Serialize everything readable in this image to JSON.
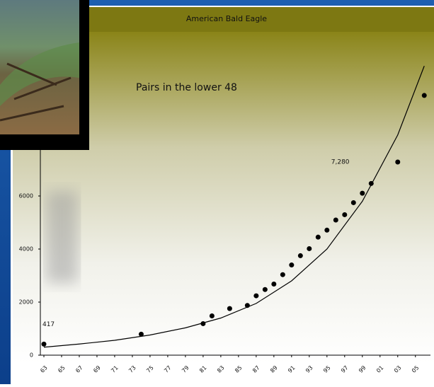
{
  "chart_data": {
    "type": "scatter",
    "title": "American Bald Eagle",
    "annotation": "Pairs in the lower 48",
    "series": [
      {
        "color": "#000000",
        "x": [
          1963,
          1974,
          1981,
          1982,
          1984,
          1986,
          1987,
          1988,
          1989,
          1990,
          1991,
          1992,
          1993,
          1994,
          1995,
          1996,
          1997,
          1998,
          1999,
          2000,
          2003,
          2006
        ],
        "values": [
          417,
          791,
          1188,
          1480,
          1757,
          1875,
          2238,
          2475,
          2680,
          3035,
          3399,
          3749,
          4015,
          4449,
          4712,
          5094,
          5295,
          5748,
          6104,
          6471,
          7280,
          9789
        ],
        "value_labels": [
          "417",
          null,
          null,
          null,
          null,
          null,
          null,
          null,
          null,
          null,
          null,
          null,
          null,
          null,
          null,
          null,
          null,
          null,
          null,
          null,
          "7,280",
          null
        ]
      }
    ],
    "trend": {
      "color": "#000000",
      "x": [
        1963,
        1967,
        1971,
        1975,
        1979,
        1983,
        1987,
        1991,
        1995,
        1999,
        2003,
        2006
      ],
      "values": [
        300,
        420,
        560,
        760,
        1030,
        1400,
        1950,
        2800,
        4000,
        5800,
        8300,
        10900
      ]
    },
    "xlim": [
      1962.6,
      2006.7
    ],
    "ylim": [
      0,
      12000
    ],
    "yticks": [
      0,
      2000,
      4000,
      6000
    ],
    "xticks": [
      {
        "value": 1963,
        "label": "63"
      },
      {
        "value": 1965,
        "label": "65"
      },
      {
        "value": 1967,
        "label": "67"
      },
      {
        "value": 1969,
        "label": "69"
      },
      {
        "value": 1971,
        "label": "71"
      },
      {
        "value": 1973,
        "label": "73"
      },
      {
        "value": 1975,
        "label": "75"
      },
      {
        "value": 1977,
        "label": "77"
      },
      {
        "value": 1979,
        "label": "79"
      },
      {
        "value": 1981,
        "label": "81"
      },
      {
        "value": 1983,
        "label": "83"
      },
      {
        "value": 1985,
        "label": "85"
      },
      {
        "value": 1987,
        "label": "87"
      },
      {
        "value": 1989,
        "label": "89"
      },
      {
        "value": 1991,
        "label": "91"
      },
      {
        "value": 1993,
        "label": "93"
      },
      {
        "value": 1995,
        "label": "95"
      },
      {
        "value": 1997,
        "label": "97"
      },
      {
        "value": 1999,
        "label": "99"
      },
      {
        "value": 2001,
        "label": "01"
      },
      {
        "value": 2003,
        "label": "03"
      },
      {
        "value": 2005,
        "label": "05"
      }
    ]
  }
}
